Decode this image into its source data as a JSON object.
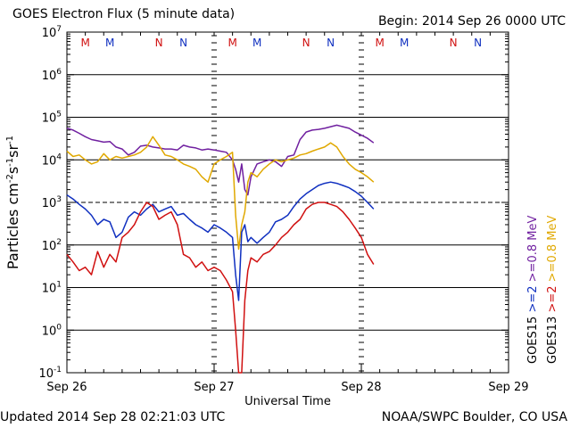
{
  "chart_data": {
    "type": "line",
    "title": "GOES Electron Flux (5 minute data)",
    "begin_label": "Begin: 2014 Sep 26 0000 UTC",
    "xlabel": "Universal Time",
    "ylabel_parts": [
      "Particles cm",
      "-2",
      "s",
      "-1",
      "sr",
      "-1"
    ],
    "y_scale": "log",
    "ylim": [
      0.1,
      10000000
    ],
    "y_ticks": [
      {
        "exp": "7",
        "value": 10000000
      },
      {
        "exp": "6",
        "value": 1000000
      },
      {
        "exp": "5",
        "value": 100000
      },
      {
        "exp": "4",
        "value": 10000
      },
      {
        "exp": "3",
        "value": 1000
      },
      {
        "exp": "2",
        "value": 100
      },
      {
        "exp": "1",
        "value": 10
      },
      {
        "exp": "0",
        "value": 1
      },
      {
        "exp": "-1",
        "value": 0.1
      }
    ],
    "xlim": [
      "2014-09-26 00:00",
      "2014-09-29 00:00"
    ],
    "x_ticks": [
      {
        "label": "Sep 26",
        "time": "2014-09-26 00:00"
      },
      {
        "label": "Sep 27",
        "time": "2014-09-27 00:00"
      },
      {
        "label": "Sep 28",
        "time": "2014-09-28 00:00"
      },
      {
        "label": "Sep 29",
        "time": "2014-09-29 00:00"
      }
    ],
    "threshold_line": {
      "value": 1000,
      "style": "dashed"
    },
    "markers": [
      {
        "text": "M",
        "time": "2014-09-26 03:00",
        "color": "#d01010"
      },
      {
        "text": "M",
        "time": "2014-09-26 07:00",
        "color": "#1030c0"
      },
      {
        "text": "N",
        "time": "2014-09-26 15:00",
        "color": "#d01010"
      },
      {
        "text": "N",
        "time": "2014-09-26 19:00",
        "color": "#1030c0"
      },
      {
        "text": "M",
        "time": "2014-09-27 03:00",
        "color": "#d01010"
      },
      {
        "text": "M",
        "time": "2014-09-27 07:00",
        "color": "#1030c0"
      },
      {
        "text": "N",
        "time": "2014-09-27 15:00",
        "color": "#d01010"
      },
      {
        "text": "N",
        "time": "2014-09-27 19:00",
        "color": "#1030c0"
      },
      {
        "text": "M",
        "time": "2014-09-28 03:00",
        "color": "#d01010"
      },
      {
        "text": "M",
        "time": "2014-09-28 07:00",
        "color": "#1030c0"
      },
      {
        "text": "N",
        "time": "2014-09-28 15:00",
        "color": "#d01010"
      },
      {
        "text": "N",
        "time": "2014-09-28 19:00",
        "color": "#1030c0"
      }
    ],
    "right_legend": [
      {
        "text": "GOES15",
        "color": "#000000"
      },
      {
        "text": ">=2",
        "color": "#1030c0"
      },
      {
        "text": ">=0.8 MeV",
        "color": "#7020a0"
      },
      {
        "text": "GOES13",
        "color": "#000000"
      },
      {
        "text": ">=2",
        "color": "#d01010"
      },
      {
        "text": ">=0.8 MeV",
        "color": "#e0a800"
      }
    ],
    "series": [
      {
        "satellite": "GOES15",
        "energy": ">=0.8 MeV",
        "color": "#7020a0",
        "x": [
          "2014-09-26 00:00",
          "2014-09-26 01:00",
          "2014-09-26 02:00",
          "2014-09-26 03:00",
          "2014-09-26 04:00",
          "2014-09-26 05:00",
          "2014-09-26 06:00",
          "2014-09-26 07:00",
          "2014-09-26 08:00",
          "2014-09-26 09:00",
          "2014-09-26 10:00",
          "2014-09-26 11:00",
          "2014-09-26 12:00",
          "2014-09-26 13:00",
          "2014-09-26 14:00",
          "2014-09-26 15:00",
          "2014-09-26 16:00",
          "2014-09-26 17:00",
          "2014-09-26 18:00",
          "2014-09-26 19:00",
          "2014-09-26 20:00",
          "2014-09-26 21:00",
          "2014-09-26 22:00",
          "2014-09-26 23:00",
          "2014-09-27 00:00",
          "2014-09-27 01:00",
          "2014-09-27 02:00",
          "2014-09-27 03:00",
          "2014-09-27 03:30",
          "2014-09-27 04:00",
          "2014-09-27 04:30",
          "2014-09-27 05:00",
          "2014-09-27 05:30",
          "2014-09-27 06:00",
          "2014-09-27 07:00",
          "2014-09-27 08:00",
          "2014-09-27 09:00",
          "2014-09-27 10:00",
          "2014-09-27 11:00",
          "2014-09-27 12:00",
          "2014-09-27 13:00",
          "2014-09-27 14:00",
          "2014-09-27 15:00",
          "2014-09-27 16:00",
          "2014-09-27 17:00",
          "2014-09-27 18:00",
          "2014-09-27 19:00",
          "2014-09-27 20:00",
          "2014-09-27 21:00",
          "2014-09-27 22:00",
          "2014-09-27 23:00",
          "2014-09-28 00:00",
          "2014-09-28 01:00",
          "2014-09-28 02:00"
        ],
        "y": [
          55000,
          50000,
          42000,
          35000,
          30000,
          28000,
          26000,
          27000,
          20000,
          18000,
          13000,
          15000,
          21000,
          22000,
          20000,
          19000,
          18000,
          18000,
          17000,
          22000,
          20000,
          19000,
          17000,
          18000,
          17000,
          16000,
          15000,
          10000,
          6000,
          3000,
          8000,
          2000,
          1500,
          4000,
          8000,
          9000,
          10000,
          9000,
          7000,
          12000,
          13000,
          30000,
          45000,
          50000,
          52000,
          55000,
          60000,
          65000,
          60000,
          55000,
          45000,
          38000,
          32000,
          25000
        ]
      },
      {
        "satellite": "GOES13",
        "energy": ">=0.8 MeV",
        "color": "#e0a800",
        "x": [
          "2014-09-26 00:00",
          "2014-09-26 01:00",
          "2014-09-26 02:00",
          "2014-09-26 03:00",
          "2014-09-26 04:00",
          "2014-09-26 05:00",
          "2014-09-26 06:00",
          "2014-09-26 07:00",
          "2014-09-26 08:00",
          "2014-09-26 09:00",
          "2014-09-26 10:00",
          "2014-09-26 11:00",
          "2014-09-26 12:00",
          "2014-09-26 13:00",
          "2014-09-26 14:00",
          "2014-09-26 15:00",
          "2014-09-26 16:00",
          "2014-09-26 17:00",
          "2014-09-26 18:00",
          "2014-09-26 19:00",
          "2014-09-26 20:00",
          "2014-09-26 21:00",
          "2014-09-26 22:00",
          "2014-09-26 23:00",
          "2014-09-27 00:00",
          "2014-09-27 01:00",
          "2014-09-27 02:00",
          "2014-09-27 03:00",
          "2014-09-27 03:30",
          "2014-09-27 04:00",
          "2014-09-27 04:30",
          "2014-09-27 05:00",
          "2014-09-27 05:30",
          "2014-09-27 06:00",
          "2014-09-27 07:00",
          "2014-09-27 08:00",
          "2014-09-27 09:00",
          "2014-09-27 10:00",
          "2014-09-27 11:00",
          "2014-09-27 12:00",
          "2014-09-27 13:00",
          "2014-09-27 14:00",
          "2014-09-27 15:00",
          "2014-09-27 16:00",
          "2014-09-27 17:00",
          "2014-09-27 18:00",
          "2014-09-27 19:00",
          "2014-09-27 20:00",
          "2014-09-27 21:00",
          "2014-09-27 22:00",
          "2014-09-27 23:00",
          "2014-09-28 00:00",
          "2014-09-28 01:00",
          "2014-09-28 02:00"
        ],
        "y": [
          16000,
          12000,
          13000,
          10000,
          8000,
          9000,
          14000,
          10000,
          12000,
          11000,
          12000,
          13000,
          15000,
          20000,
          35000,
          22000,
          13000,
          12000,
          10000,
          8000,
          7000,
          6000,
          4000,
          3000,
          8000,
          10000,
          12000,
          15000,
          500,
          80,
          300,
          600,
          3000,
          5000,
          4000,
          6000,
          8000,
          10000,
          9000,
          10000,
          11000,
          13000,
          14000,
          16000,
          18000,
          20000,
          25000,
          20000,
          12000,
          8000,
          6000,
          5000,
          4000,
          3000
        ]
      },
      {
        "satellite": "GOES15",
        "energy": ">=2 MeV",
        "color": "#1030c0",
        "x": [
          "2014-09-26 00:00",
          "2014-09-26 01:00",
          "2014-09-26 02:00",
          "2014-09-26 03:00",
          "2014-09-26 04:00",
          "2014-09-26 05:00",
          "2014-09-26 06:00",
          "2014-09-26 07:00",
          "2014-09-26 08:00",
          "2014-09-26 09:00",
          "2014-09-26 10:00",
          "2014-09-26 11:00",
          "2014-09-26 12:00",
          "2014-09-26 13:00",
          "2014-09-26 14:00",
          "2014-09-26 15:00",
          "2014-09-26 16:00",
          "2014-09-26 17:00",
          "2014-09-26 18:00",
          "2014-09-26 19:00",
          "2014-09-26 20:00",
          "2014-09-26 21:00",
          "2014-09-26 22:00",
          "2014-09-26 23:00",
          "2014-09-27 00:00",
          "2014-09-27 01:00",
          "2014-09-27 02:00",
          "2014-09-27 03:00",
          "2014-09-27 03:30",
          "2014-09-27 04:00",
          "2014-09-27 04:30",
          "2014-09-27 05:00",
          "2014-09-27 05:30",
          "2014-09-27 06:00",
          "2014-09-27 07:00",
          "2014-09-27 08:00",
          "2014-09-27 09:00",
          "2014-09-27 10:00",
          "2014-09-27 11:00",
          "2014-09-27 12:00",
          "2014-09-27 13:00",
          "2014-09-27 14:00",
          "2014-09-27 15:00",
          "2014-09-27 16:00",
          "2014-09-27 17:00",
          "2014-09-27 18:00",
          "2014-09-27 19:00",
          "2014-09-27 20:00",
          "2014-09-27 21:00",
          "2014-09-27 22:00",
          "2014-09-27 23:00",
          "2014-09-28 00:00",
          "2014-09-28 01:00",
          "2014-09-28 02:00"
        ],
        "y": [
          1500,
          1200,
          900,
          700,
          500,
          300,
          400,
          350,
          150,
          200,
          450,
          600,
          500,
          700,
          900,
          600,
          700,
          800,
          500,
          550,
          400,
          300,
          250,
          200,
          300,
          250,
          200,
          150,
          20,
          5,
          200,
          300,
          120,
          150,
          110,
          150,
          200,
          350,
          400,
          500,
          800,
          1200,
          1600,
          2000,
          2500,
          2800,
          3000,
          2800,
          2500,
          2200,
          1800,
          1400,
          1000,
          700
        ]
      },
      {
        "satellite": "GOES13",
        "energy": ">=2 MeV",
        "color": "#d01010",
        "x": [
          "2014-09-26 00:00",
          "2014-09-26 01:00",
          "2014-09-26 02:00",
          "2014-09-26 03:00",
          "2014-09-26 04:00",
          "2014-09-26 05:00",
          "2014-09-26 06:00",
          "2014-09-26 07:00",
          "2014-09-26 08:00",
          "2014-09-26 09:00",
          "2014-09-26 10:00",
          "2014-09-26 11:00",
          "2014-09-26 12:00",
          "2014-09-26 13:00",
          "2014-09-26 14:00",
          "2014-09-26 15:00",
          "2014-09-26 16:00",
          "2014-09-26 17:00",
          "2014-09-26 18:00",
          "2014-09-26 19:00",
          "2014-09-26 20:00",
          "2014-09-26 21:00",
          "2014-09-26 22:00",
          "2014-09-26 23:00",
          "2014-09-27 00:00",
          "2014-09-27 01:00",
          "2014-09-27 02:00",
          "2014-09-27 03:00",
          "2014-09-27 03:30",
          "2014-09-27 04:00",
          "2014-09-27 04:30",
          "2014-09-27 05:00",
          "2014-09-27 05:30",
          "2014-09-27 06:00",
          "2014-09-27 07:00",
          "2014-09-27 08:00",
          "2014-09-27 09:00",
          "2014-09-27 10:00",
          "2014-09-27 11:00",
          "2014-09-27 12:00",
          "2014-09-27 13:00",
          "2014-09-27 14:00",
          "2014-09-27 15:00",
          "2014-09-27 16:00",
          "2014-09-27 17:00",
          "2014-09-27 18:00",
          "2014-09-27 19:00",
          "2014-09-27 20:00",
          "2014-09-27 21:00",
          "2014-09-27 22:00",
          "2014-09-27 23:00",
          "2014-09-28 00:00",
          "2014-09-28 01:00",
          "2014-09-28 02:00"
        ],
        "y": [
          60,
          40,
          25,
          30,
          20,
          70,
          30,
          60,
          40,
          150,
          200,
          300,
          600,
          1000,
          800,
          400,
          500,
          600,
          300,
          60,
          50,
          30,
          40,
          25,
          30,
          25,
          15,
          8,
          1,
          0.1,
          0.1,
          5,
          25,
          50,
          40,
          60,
          70,
          100,
          150,
          200,
          300,
          400,
          700,
          900,
          1000,
          1000,
          900,
          800,
          600,
          400,
          250,
          150,
          60,
          35
        ]
      }
    ]
  },
  "footer": {
    "updated": "Updated 2014 Sep 28 02:21:03 UTC",
    "credit": "NOAA/SWPC Boulder, CO USA"
  }
}
